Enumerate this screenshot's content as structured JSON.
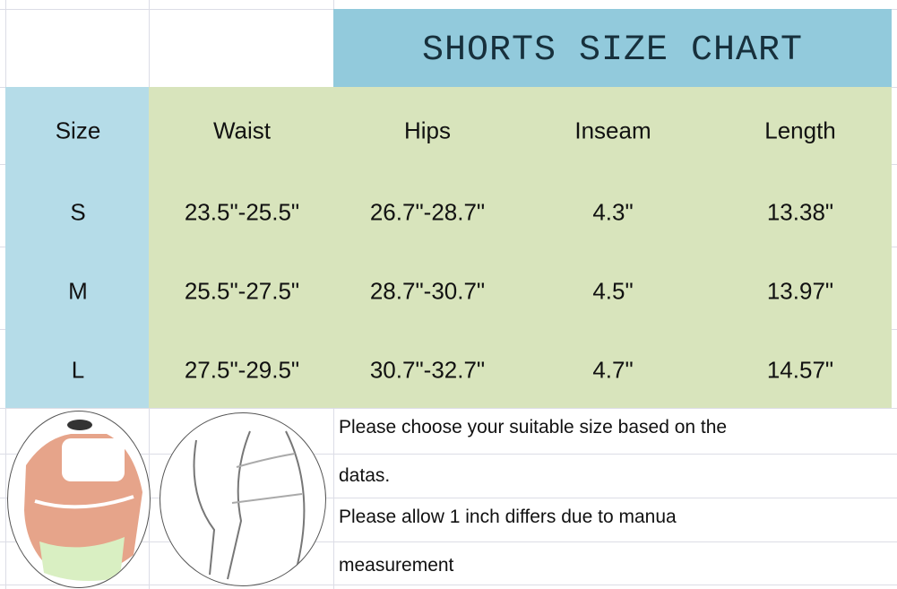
{
  "title": "SHORTS SIZE CHART",
  "table": {
    "headers": [
      "Size",
      "Waist",
      "Hips",
      "Inseam",
      "Length"
    ],
    "rows": [
      [
        "S",
        "23.5\"-25.5\"",
        "26.7\"-28.7\"",
        "4.3\"",
        "13.38\""
      ],
      [
        "M",
        "25.5\"-27.5\"",
        "28.7\"-30.7\"",
        "4.5\"",
        "13.97\""
      ],
      [
        "L",
        "27.5\"-29.5\"",
        "30.7\"-32.7\"",
        "4.7\"",
        "14.57\""
      ]
    ]
  },
  "notes": [
    "Please choose your suitable size based on the",
    "datas.",
    "Please allow 1 inch differs due to manua",
    "measurement"
  ],
  "colors": {
    "title_band": "#92cadc",
    "size_column": "#b5dce8",
    "measurement_area": "#d8e4bc"
  },
  "images": [
    "waist-measurement-illustration",
    "hip-measurement-illustration"
  ]
}
